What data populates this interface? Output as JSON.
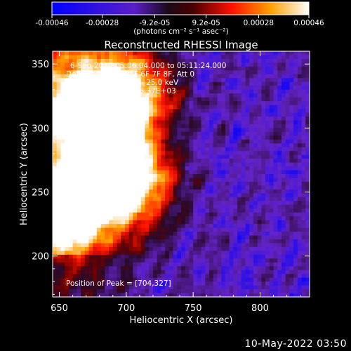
{
  "colorbar": {
    "ticks": [
      {
        "label": "-0.00046",
        "value": -0.00046
      },
      {
        "label": "-0.00028",
        "value": -0.00028
      },
      {
        "label": "-9.2e-05",
        "value": -9.2e-05
      },
      {
        "label": "9.2e-05",
        "value": 9.2e-05
      },
      {
        "label": "0.00028",
        "value": 0.00028
      },
      {
        "label": "0.00046",
        "value": 0.00046
      }
    ],
    "unit_label": "(photons cm⁻² s⁻¹ asec⁻²)",
    "range": [
      -0.00046,
      0.00046
    ]
  },
  "chart_data": {
    "type": "heatmap",
    "title": "Reconstructed RHESSI Image",
    "xlabel": "Heliocentric X (arcsec)",
    "ylabel": "Heliocentric Y (arcsec)",
    "xlim": [
      645,
      837
    ],
    "ylim": [
      168,
      360
    ],
    "xticks": [
      650,
      700,
      750,
      800
    ],
    "yticks": [
      200,
      250,
      300,
      350
    ],
    "grid": false,
    "colormap": [
      "#0000ff",
      "#6a1fc7",
      "#1a0a1a",
      "#8b0000",
      "#ff2000",
      "#ff9a00",
      "#ffffff"
    ],
    "annotations": [
      "6-Sep-2010 05:06:04.000 to 05:11:24.000",
      "Detectors: 3F 4F 5F 6F 7F 8F, Att 0",
      "Energy Range: 12.0 - 25.0 keV",
      "Clean     Total Counts: 5.37E+03"
    ],
    "peak_label": "Position of Peak = [704,327]",
    "peak": [
      704,
      327
    ],
    "bright_sources": [
      {
        "x": 703,
        "y": 330
      },
      {
        "x": 662,
        "y": 315
      },
      {
        "x": 690,
        "y": 290
      },
      {
        "x": 675,
        "y": 252
      },
      {
        "x": 655,
        "y": 232
      },
      {
        "x": 710,
        "y": 255
      }
    ]
  },
  "footer": {
    "date": "10-May-2022 03:50"
  }
}
